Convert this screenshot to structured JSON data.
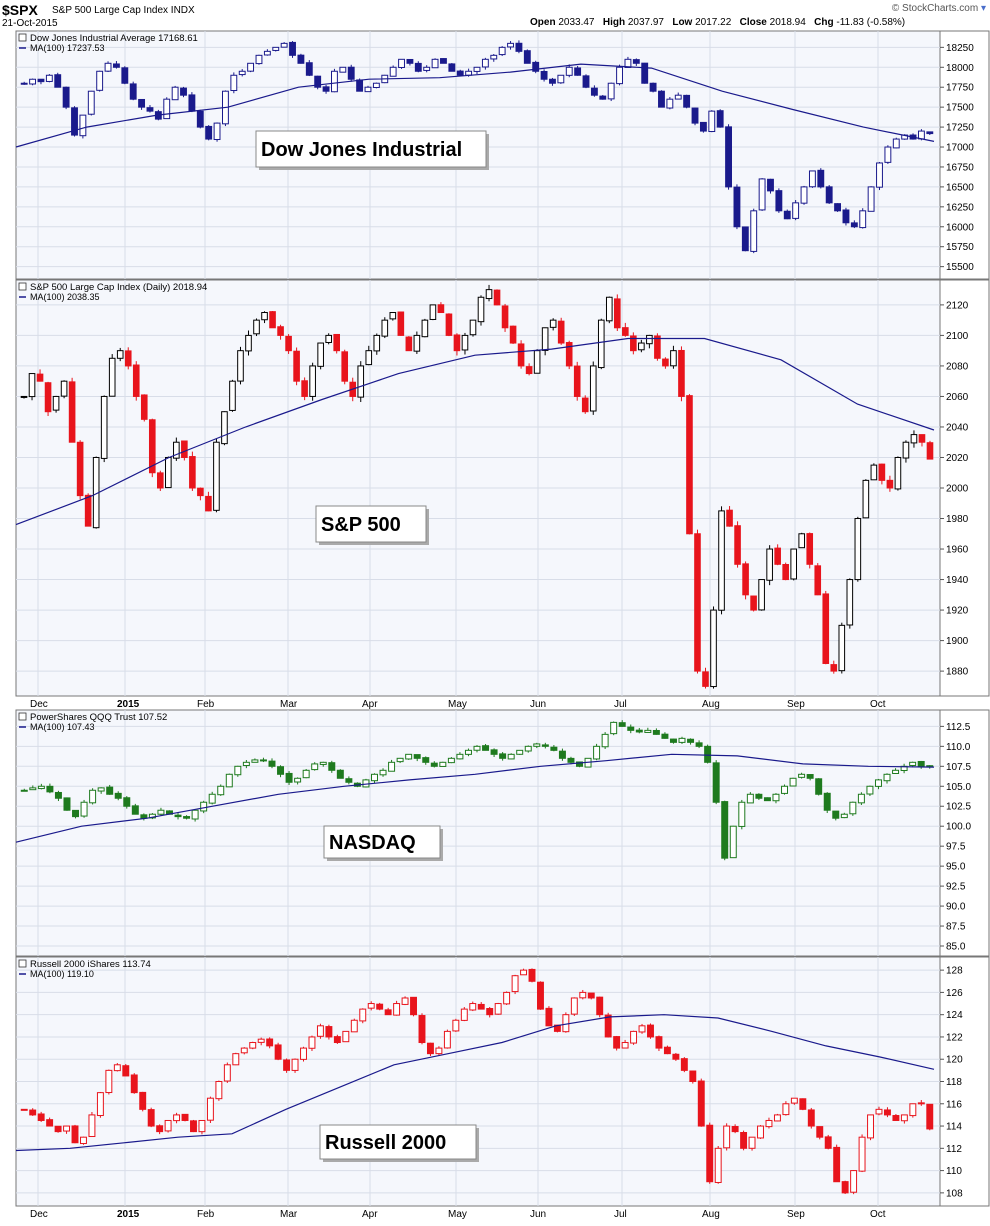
{
  "header": {
    "symbol": "$SPX",
    "symbol_name": "S&P 500 Large Cap Index",
    "exchange": "INDX",
    "date": "21-Oct-2015",
    "open_label": "Open",
    "open": "2033.47",
    "high_label": "High",
    "high": "2037.97",
    "low_label": "Low",
    "low": "2017.22",
    "close_label": "Close",
    "close": "2018.94",
    "chg_label": "Chg",
    "chg": "-11.83 (-0.58%)",
    "credit": "© StockCharts.com"
  },
  "months": [
    "Dec",
    "2015",
    "Feb",
    "Mar",
    "Apr",
    "May",
    "Jun",
    "Jul",
    "Aug",
    "Sep",
    "Oct"
  ],
  "colors": {
    "dow_candles": "#1a1a8c",
    "spx_up": "#000000",
    "spx_down": "#e8141c",
    "qqq": "#1e7a1e",
    "iwm": "#e8141c",
    "ma": "#1a1a8c"
  },
  "chart_data": [
    {
      "type": "candlestick",
      "legend_title": "Dow Jones Industrial Average 17168.61",
      "legend_ma": "MA(100) 17237.53",
      "annotation": "Dow Jones Industrial",
      "y_ticks": [
        18250,
        18000,
        17750,
        17500,
        17250,
        17000,
        16750,
        16500,
        16250,
        16000,
        15750,
        15500
      ],
      "ylim": [
        15370,
        18430
      ],
      "close_series": [
        17800,
        17850,
        17820,
        17900,
        17750,
        17500,
        17150,
        17400,
        17700,
        17950,
        18050,
        18000,
        17800,
        17600,
        17500,
        17450,
        17350,
        17600,
        17750,
        17650,
        17450,
        17250,
        17100,
        17300,
        17700,
        17900,
        17950,
        18050,
        18150,
        18200,
        18250,
        18300,
        18150,
        18050,
        17900,
        17750,
        17700,
        17950,
        18000,
        17850,
        17700,
        17750,
        17800,
        17900,
        18000,
        18100,
        18050,
        17950,
        18000,
        18100,
        18050,
        17950,
        17900,
        17950,
        18000,
        18100,
        18150,
        18250,
        18300,
        18200,
        18050,
        17950,
        17850,
        17800,
        17900,
        18000,
        17900,
        17750,
        17650,
        17600,
        17800,
        18000,
        18100,
        18050,
        17800,
        17700,
        17500,
        17600,
        17650,
        17500,
        17300,
        17200,
        17450,
        17250,
        16500,
        16000,
        15700,
        16200,
        16600,
        16450,
        16200,
        16100,
        16300,
        16500,
        16700,
        16500,
        16300,
        16200,
        16050,
        16000,
        16200,
        16500,
        16800,
        17000,
        17100,
        17150,
        17100,
        17200,
        17168.61
      ],
      "ma_series": [
        17000,
        17250,
        17400,
        17500,
        17750,
        17850,
        17870,
        17940,
        18040,
        17990,
        17700,
        17470,
        17250,
        17070
      ]
    },
    {
      "type": "candlestick",
      "legend_title": "S&P 500 Large Cap Index (Daily) 2018.94",
      "legend_ma": "MA(100) 2038.35",
      "annotation": "S&P 500",
      "y_ticks": [
        2120,
        2100,
        2080,
        2060,
        2040,
        2020,
        2000,
        1980,
        1960,
        1940,
        1920,
        1900,
        1880
      ],
      "ylim": [
        1865,
        2135
      ],
      "close_series": [
        2060,
        2075,
        2070,
        2050,
        2060,
        2070,
        2030,
        1995,
        1975,
        2020,
        2060,
        2085,
        2090,
        2080,
        2060,
        2045,
        2010,
        2000,
        2020,
        2030,
        2020,
        2000,
        1995,
        1985,
        2030,
        2050,
        2070,
        2090,
        2100,
        2110,
        2115,
        2105,
        2100,
        2090,
        2070,
        2060,
        2080,
        2095,
        2100,
        2090,
        2070,
        2060,
        2080,
        2090,
        2100,
        2110,
        2115,
        2100,
        2090,
        2100,
        2110,
        2120,
        2115,
        2100,
        2090,
        2100,
        2110,
        2125,
        2130,
        2120,
        2105,
        2095,
        2080,
        2075,
        2090,
        2105,
        2110,
        2095,
        2080,
        2060,
        2050,
        2080,
        2110,
        2125,
        2105,
        2100,
        2090,
        2095,
        2100,
        2085,
        2080,
        2090,
        2060,
        1970,
        1880,
        1870,
        1920,
        1985,
        1975,
        1950,
        1930,
        1920,
        1940,
        1960,
        1950,
        1940,
        1960,
        1970,
        1950,
        1930,
        1885,
        1880,
        1910,
        1940,
        1980,
        2005,
        2015,
        2005,
        2000,
        2020,
        2030,
        2035,
        2030,
        2018.94
      ],
      "ma_series": [
        1976,
        1995,
        2020,
        2040,
        2058,
        2075,
        2087,
        2091,
        2098,
        2098,
        2084,
        2055,
        2038
      ]
    },
    {
      "type": "candlestick",
      "legend_title": "PowerShares QQQ Trust 107.52",
      "legend_ma": "MA(100) 107.43",
      "annotation": "NASDAQ",
      "y_ticks": [
        112.5,
        110.0,
        107.5,
        105.0,
        102.5,
        100.0,
        97.5,
        95.0,
        92.5,
        90.0,
        87.5,
        85.0
      ],
      "ylim": [
        84.0,
        114.3
      ],
      "close_series": [
        104.5,
        104.8,
        105,
        104.3,
        103.5,
        102,
        101.2,
        103,
        104.5,
        104.8,
        104,
        103.5,
        102.5,
        101.5,
        101,
        101.5,
        102,
        101.5,
        101.2,
        101,
        102,
        103,
        104,
        105,
        106.5,
        107.5,
        108,
        108.3,
        108.2,
        107.5,
        106.5,
        105.5,
        106,
        107,
        107.8,
        108,
        107,
        106,
        105.5,
        105,
        105.8,
        106.5,
        107,
        108,
        108.5,
        109,
        108.5,
        108,
        107.5,
        108,
        108.5,
        109,
        109.5,
        110,
        109.5,
        109,
        108.5,
        109,
        109.5,
        110,
        110.3,
        110,
        109.5,
        108.5,
        108,
        107.5,
        108.5,
        110,
        111.5,
        113,
        112.5,
        112,
        111.8,
        112,
        111.5,
        111,
        110.5,
        111,
        110.5,
        110,
        108,
        103,
        96,
        100,
        103,
        104,
        103.5,
        103.2,
        104,
        105,
        106,
        106.5,
        106,
        104,
        102,
        101,
        101.5,
        103,
        104,
        105,
        105.8,
        106.5,
        107,
        107.5,
        108,
        107.5,
        107.52
      ],
      "ma_series": [
        98,
        100,
        101,
        102.5,
        104,
        105,
        105.8,
        106.5,
        107.5,
        108.2,
        109,
        108.8,
        107.8,
        107.5,
        107.4
      ]
    },
    {
      "type": "candlestick",
      "legend_title": "Russell 2000 iShares 113.74",
      "legend_ma": "MA(100) 119.10",
      "annotation": "Russell 2000",
      "y_ticks": [
        128,
        126,
        124,
        122,
        120,
        118,
        116,
        114,
        112,
        110,
        108
      ],
      "ylim": [
        107.0,
        129.0
      ],
      "close_series": [
        115.5,
        115,
        114.5,
        114,
        113.5,
        114,
        112.5,
        113,
        115,
        117,
        119,
        119.5,
        118.5,
        117,
        115.5,
        114,
        113.5,
        114.5,
        115,
        114.5,
        113.5,
        114.5,
        116.5,
        118,
        119.5,
        120.5,
        121,
        121.5,
        121.8,
        121.2,
        120,
        119,
        120,
        121,
        122,
        123,
        122,
        121.5,
        122.5,
        123.5,
        124.5,
        125,
        124.5,
        124,
        125,
        125.5,
        124,
        121.5,
        120.5,
        121,
        122.5,
        123.5,
        124.5,
        125,
        124.5,
        124,
        125,
        126,
        127.5,
        128,
        127,
        124.5,
        123,
        122.5,
        124,
        125.5,
        126,
        125.5,
        124,
        122,
        121,
        121.5,
        122.5,
        123,
        122,
        121,
        120.5,
        120,
        119,
        118,
        114,
        109,
        112,
        114,
        113.5,
        112,
        113,
        114,
        114.5,
        115,
        116,
        116.5,
        115.5,
        114,
        113,
        112,
        109,
        108,
        110,
        113,
        115,
        115.5,
        115,
        114.5,
        115,
        116,
        116,
        113.74
      ],
      "ma_series": [
        111.8,
        112,
        112.5,
        113,
        113.3,
        115.5,
        117.5,
        119.5,
        120.5,
        121.5,
        123,
        123.8,
        124,
        123.7,
        122.5,
        121.2,
        120.2,
        119.1
      ]
    }
  ]
}
